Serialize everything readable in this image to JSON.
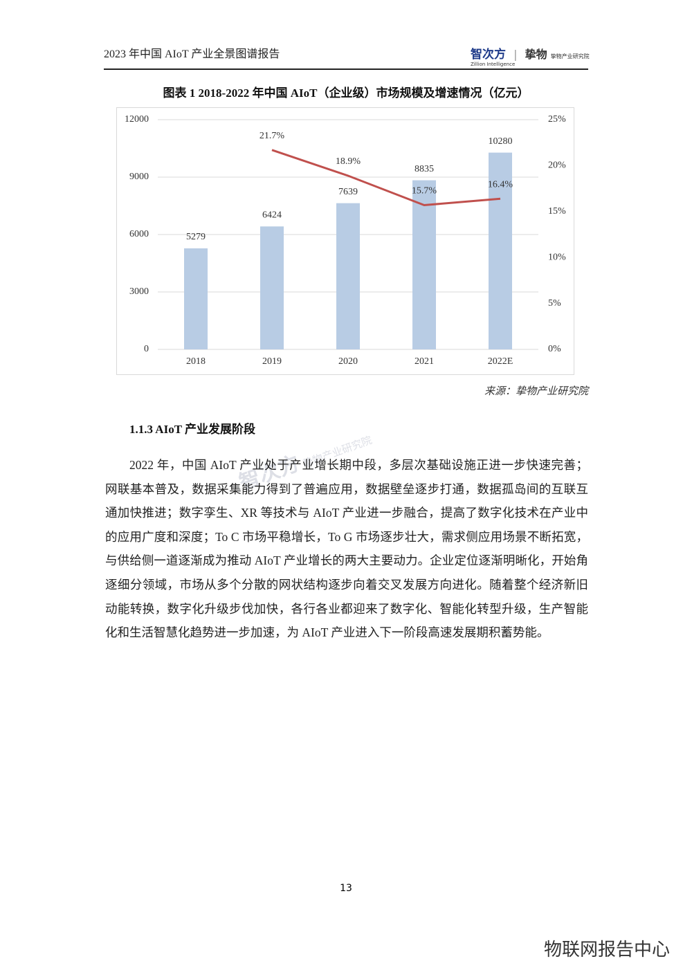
{
  "header": {
    "title": "2023 年中国 AIoT 产业全景图谱报告",
    "logo_name": "智次方",
    "logo_sub": "Zillion Intelligence",
    "logo2_name": "挚物",
    "logo2_sub": "挚物产业研究院"
  },
  "chart_data": {
    "type": "combo",
    "title": "图表 1   2018-2022 年中国 AIoT（企业级）市场规模及增速情况（亿元）",
    "categories": [
      "2018",
      "2019",
      "2020",
      "2021",
      "2022E"
    ],
    "series": [
      {
        "type": "bar",
        "color": "#b8cce4",
        "values": [
          5279,
          6424,
          7639,
          8835,
          10280
        ]
      },
      {
        "type": "line",
        "axis": "y2",
        "color": "#c0504d",
        "values": [
          null,
          21.7,
          18.9,
          15.7,
          16.4
        ],
        "value_labels": [
          null,
          "21.7%",
          "18.9%",
          "15.7%",
          "16.4%"
        ]
      }
    ],
    "ylim": [
      0,
      12000
    ],
    "yticks": [
      0,
      3000,
      6000,
      9000,
      12000
    ],
    "y2lim": [
      0,
      25
    ],
    "y2ticks": [
      {
        "value": 0,
        "label": "0%"
      },
      {
        "value": 5,
        "label": "5%"
      },
      {
        "value": 10,
        "label": "10%"
      },
      {
        "value": 15,
        "label": "15%"
      },
      {
        "value": 20,
        "label": "20%"
      },
      {
        "value": 25,
        "label": "25%"
      }
    ],
    "grid": true
  },
  "source": "来源：挚物产业研究院",
  "section": {
    "heading": "1.1.3 AIoT 产业发展阶段",
    "paragraph": "2022 年，中国 AIoT 产业处于产业增长期中段，多层次基础设施正进一步快速完善；网联基本普及，数据采集能力得到了普遍应用，数据壁垒逐步打通，数据孤岛间的互联互通加快推进；数字孪生、XR 等技术与 AIoT 产业进一步融合，提高了数字化技术在产业中的应用广度和深度；To C 市场平稳增长，To G 市场逐步壮大，需求侧应用场景不断拓宽，与供给侧一道逐渐成为推动 AIoT 产业增长的两大主要动力。企业定位逐渐明晰化，开始角逐细分领域，市场从多个分散的网状结构逐步向着交叉发展方向进化。随着整个经济新旧动能转换，数字化升级步伐加快，各行各业都迎来了数字化、智能化转型升级，生产智能化和生活智慧化趋势进一步加速，为 AIoT 产业进入下一阶段高速发展期积蓄势能。"
  },
  "page_number": "13",
  "footer": "物联网报告中心"
}
